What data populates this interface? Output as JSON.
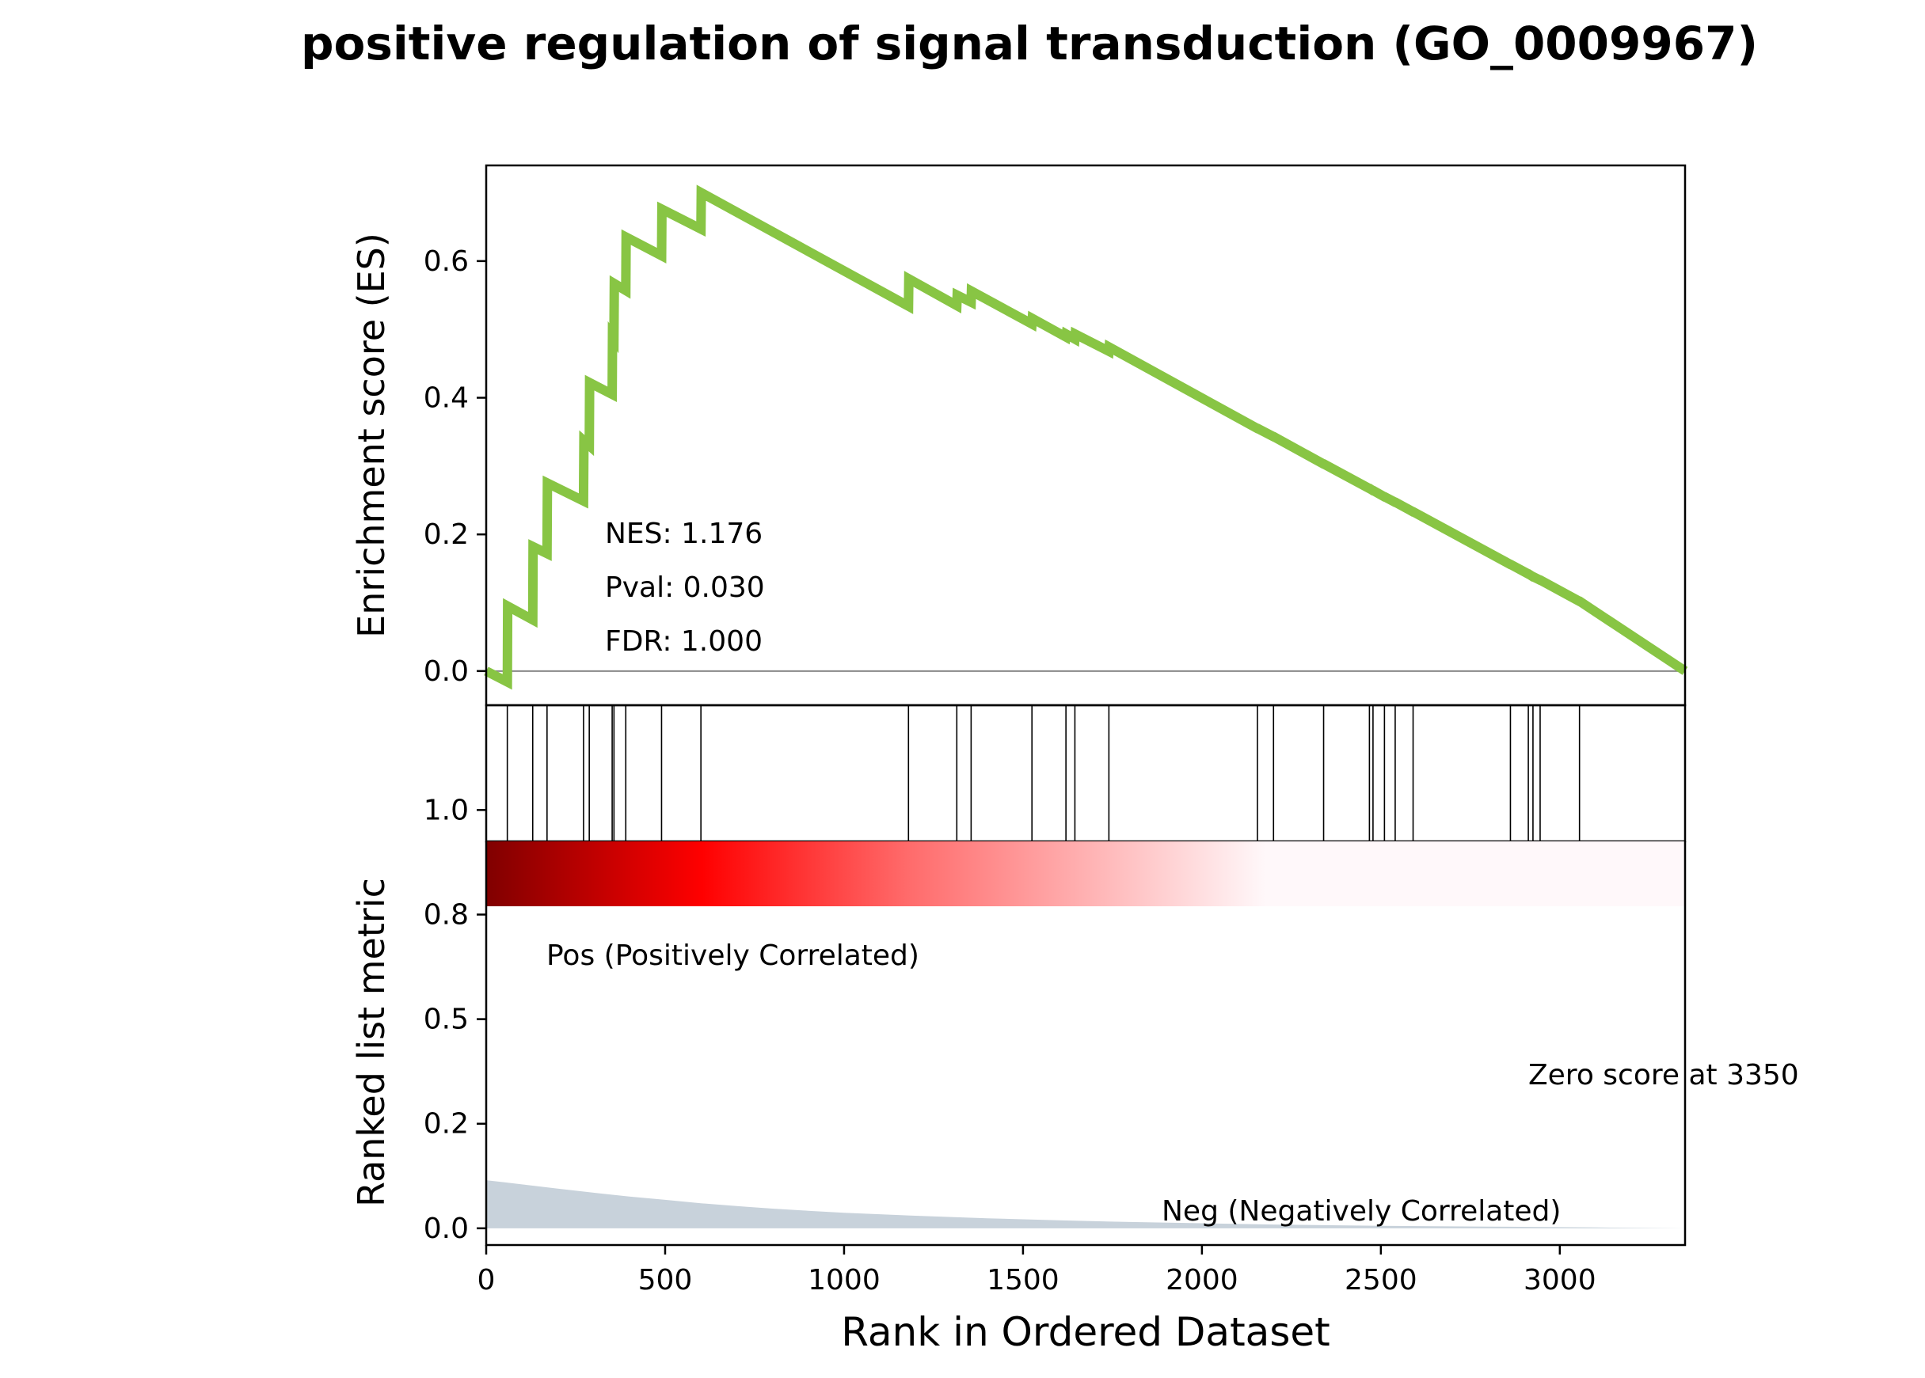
{
  "title": "positive regulation of signal transduction (GO_0009967)",
  "colors": {
    "es_line": "#88c544",
    "hit_line": "#000000",
    "metric_fill": "#c8d2db",
    "pos_text": "#ff0000",
    "neg_text": "#0000ff",
    "heat_dark": "#800000",
    "heat_mid": "#ff0000",
    "heat_light": "#fff8fa"
  },
  "stats": {
    "nes": "NES: 1.176",
    "pval": "Pval: 0.030",
    "fdr": "FDR: 1.000"
  },
  "labels": {
    "es_ylabel": "Enrichment score (ES)",
    "metric_ylabel": "Ranked list metric",
    "xlabel": "Rank in Ordered Dataset",
    "pos": "Pos (Positively Correlated)",
    "neg": "Neg (Negatively Correlated)",
    "zero_score": "Zero score at 3350"
  },
  "chart_data": {
    "type": "line",
    "title": "positive regulation of signal transduction (GO_0009967)",
    "xlabel": "Rank in Ordered Dataset",
    "xlim": [
      0,
      3350
    ],
    "xticks": [
      0,
      500,
      1000,
      1500,
      2000,
      2500,
      3000
    ],
    "es": {
      "ylabel": "Enrichment score (ES)",
      "ylim": [
        -0.05,
        0.74
      ],
      "yticks": [
        0.0,
        0.2,
        0.4,
        0.6
      ],
      "series": [
        {
          "x": [
            0,
            59,
            60,
            130,
            131,
            170,
            171,
            272,
            273,
            288,
            289,
            352,
            353,
            357,
            358,
            390,
            391,
            490,
            491,
            600,
            601,
            1180,
            1181,
            1315,
            1316,
            1355,
            1356,
            1525,
            1526,
            1620,
            1621,
            1645,
            1646,
            1740,
            1741,
            2155,
            2156,
            2200,
            2201,
            2340,
            2341,
            2468,
            2469,
            2478,
            2479,
            2510,
            2511,
            2540,
            2541,
            2590,
            2591,
            2862,
            2863,
            2912,
            2913,
            2925,
            2926,
            2945,
            2946,
            3055,
            3056,
            3350
          ],
          "y": [
            0.0,
            -0.016,
            0.095,
            0.075,
            0.182,
            0.172,
            0.275,
            0.249,
            0.337,
            0.33,
            0.422,
            0.405,
            0.49,
            0.487,
            0.567,
            0.557,
            0.635,
            0.608,
            0.676,
            0.647,
            0.7,
            0.534,
            0.574,
            0.535,
            0.55,
            0.54,
            0.556,
            0.508,
            0.516,
            0.489,
            0.493,
            0.486,
            0.493,
            0.468,
            0.474,
            0.355,
            0.355,
            0.343,
            0.343,
            0.303,
            0.303,
            0.267,
            0.267,
            0.264,
            0.264,
            0.255,
            0.255,
            0.247,
            0.247,
            0.233,
            0.233,
            0.156,
            0.156,
            0.142,
            0.142,
            0.138,
            0.138,
            0.133,
            0.133,
            0.102,
            0.102,
            0.0
          ]
        }
      ]
    },
    "hits": [
      59,
      130,
      170,
      272,
      288,
      352,
      357,
      390,
      490,
      600,
      1180,
      1315,
      1355,
      1525,
      1620,
      1645,
      1740,
      2155,
      2200,
      2340,
      2468,
      2478,
      2510,
      2540,
      2590,
      2862,
      2912,
      2925,
      2945,
      3055
    ],
    "metric": {
      "ylabel": "Ranked list metric",
      "ylim": [
        -0.04,
        0.925
      ],
      "ytick_values": [
        0.0,
        0.25,
        0.5,
        0.75,
        1.0
      ],
      "ytick_labels": [
        "0.0",
        "0.2",
        "0.5",
        "0.8",
        "1.0"
      ],
      "x": [
        0,
        100,
        200,
        300,
        400,
        500,
        600,
        700,
        800,
        900,
        1000,
        1200,
        1400,
        1600,
        1800,
        2000,
        2200,
        2500,
        2800,
        3100,
        3350
      ],
      "y": [
        0.115,
        0.105,
        0.095,
        0.085,
        0.076,
        0.068,
        0.06,
        0.053,
        0.047,
        0.042,
        0.037,
        0.03,
        0.024,
        0.019,
        0.015,
        0.012,
        0.009,
        0.006,
        0.004,
        0.002,
        0.0
      ]
    },
    "annotations": [
      "NES: 1.176",
      "Pval: 0.030",
      "FDR: 1.000",
      "Pos (Positively Correlated)",
      "Neg (Negatively Correlated)",
      "Zero score at 3350"
    ]
  }
}
